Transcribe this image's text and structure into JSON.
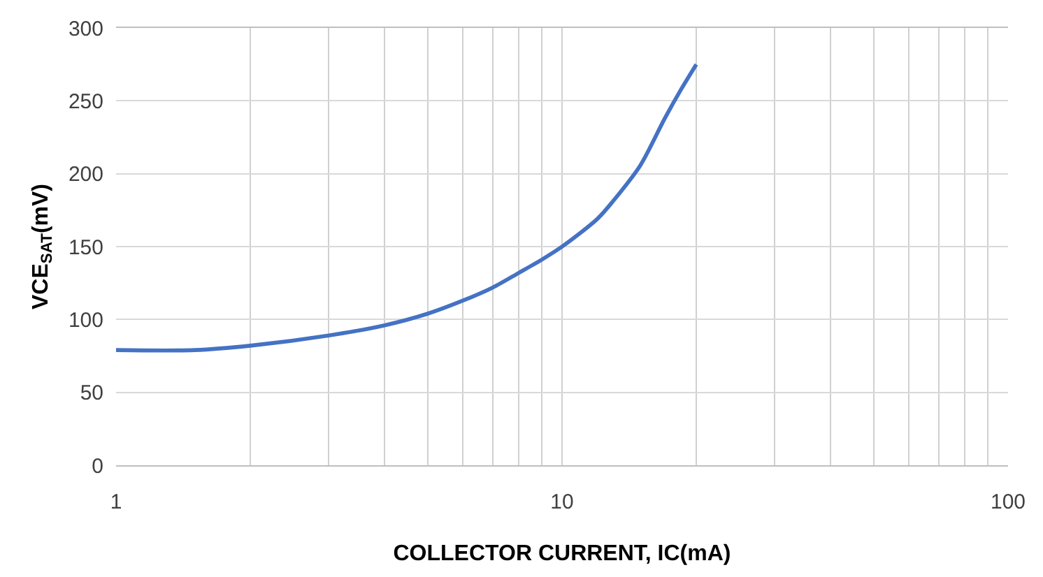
{
  "chart_data": {
    "type": "line",
    "xlabel": "COLLECTOR CURRENT, IC(mA)",
    "ylabel": "VCE$_{SAT}$(mV)",
    "x": [
      1,
      1.5,
      2,
      3,
      4,
      5,
      6,
      7,
      8,
      9,
      10,
      12,
      13,
      15,
      17,
      18.5,
      20
    ],
    "series": [
      {
        "color": "#4472c4",
        "values": [
          79,
          79,
          82,
          89,
          96,
          104,
          113,
          122,
          132,
          141,
          150,
          169,
          181,
          206,
          238,
          258,
          275
        ]
      }
    ],
    "log": "x",
    "xlim": [
      1,
      100
    ],
    "ylim": [
      0,
      300
    ],
    "xticks": [
      1,
      {
        "value": 2,
        "label": null
      },
      {
        "value": 3,
        "label": null
      },
      {
        "value": 4,
        "label": null
      },
      {
        "value": 5,
        "label": null
      },
      {
        "value": 6,
        "label": null
      },
      {
        "value": 7,
        "label": null
      },
      {
        "value": 8,
        "label": null
      },
      {
        "value": 9,
        "label": null
      },
      10,
      {
        "value": 20,
        "label": null
      },
      {
        "value": 30,
        "label": null
      },
      {
        "value": 40,
        "label": null
      },
      {
        "value": 50,
        "label": null
      },
      {
        "value": 60,
        "label": null
      },
      {
        "value": 70,
        "label": null
      },
      {
        "value": 80,
        "label": null
      },
      {
        "value": 90,
        "label": null
      },
      100
    ],
    "yticks": [
      0,
      50,
      100,
      150,
      200,
      250,
      300
    ],
    "grid": true,
    "marker": "none",
    "line_style": "solid"
  }
}
